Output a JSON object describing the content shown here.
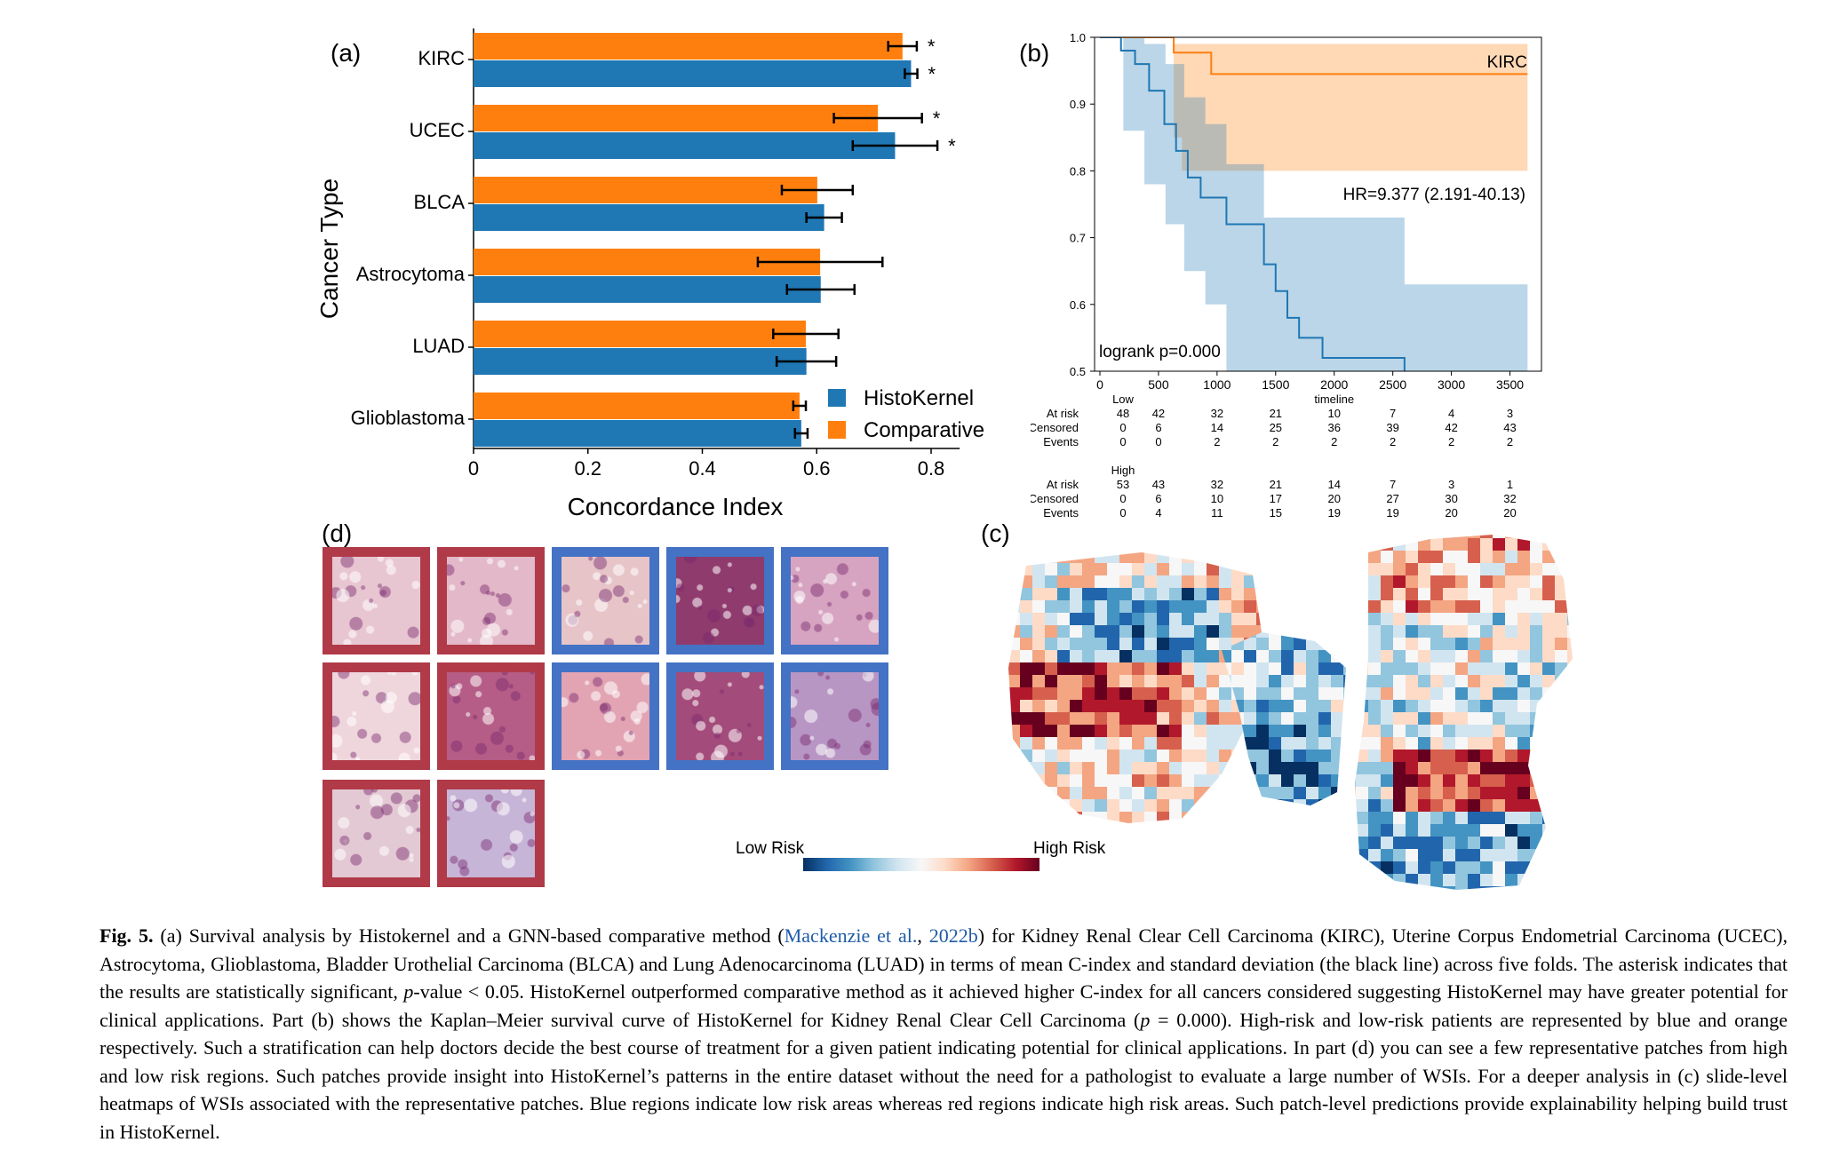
{
  "panels": {
    "a": "(a)",
    "b": "(b)",
    "c": "(c)",
    "d": "(d)"
  },
  "chart_data": [
    {
      "type": "bar",
      "orientation": "horizontal",
      "categories": [
        "KIRC",
        "UCEC",
        "BLCA",
        "Astrocytoma",
        "LUAD",
        "Glioblastoma"
      ],
      "series": [
        {
          "name": "HistoKernel",
          "color": "#1f77b4",
          "values": [
            0.765,
            0.737,
            0.613,
            0.607,
            0.582,
            0.573
          ],
          "err": [
            0.011,
            0.074,
            0.031,
            0.059,
            0.052,
            0.011
          ]
        },
        {
          "name": "Comparative",
          "color": "#ff7f0e",
          "values": [
            0.75,
            0.707,
            0.601,
            0.606,
            0.581,
            0.57
          ],
          "err": [
            0.025,
            0.077,
            0.062,
            0.109,
            0.057,
            0.011
          ]
        }
      ],
      "significant": {
        "HistoKernel": [
          true,
          true,
          false,
          false,
          false,
          false
        ],
        "Comparative": [
          true,
          true,
          false,
          false,
          false,
          false
        ]
      },
      "asterisk": "*",
      "xlabel": "Concordance Index",
      "ylabel": "Cancer Type",
      "xticks": [
        "0",
        "0.2",
        "0.4",
        "0.6",
        "0.8"
      ],
      "xlim": [
        0,
        0.85
      ],
      "legend_position": "lower-right"
    },
    {
      "type": "line",
      "title": "KIRC",
      "xlabel": "timeline",
      "xticks": [
        "0",
        "500",
        "1000",
        "1500",
        "2000",
        "2500",
        "3000",
        "3500"
      ],
      "yticks": [
        "0.5",
        "0.6",
        "0.7",
        "0.8",
        "0.9",
        "1.0"
      ],
      "xlim": [
        0,
        3700
      ],
      "ylim": [
        0.5,
        1.0
      ],
      "annotation_hr": "HR=9.377 (2.191-40.13)",
      "annotation_logrank": "logrank p=0.000",
      "series": [
        {
          "name": "Low",
          "color": "#ff7f0e",
          "x": [
            0,
            630,
            630,
            950,
            950,
            3650
          ],
          "y": [
            1.0,
            1.0,
            0.977,
            0.977,
            0.945,
            0.945
          ],
          "ci_x": [
            0,
            630,
            630,
            700,
            700,
            1400,
            1400,
            3650
          ],
          "ci_upper": [
            1.0,
            1.0,
            0.99,
            0.99,
            0.99,
            0.99,
            0.99,
            0.99
          ],
          "ci_lower": [
            1.0,
            1.0,
            0.85,
            0.85,
            0.8,
            0.8,
            0.8,
            0.8
          ]
        },
        {
          "name": "High",
          "color": "#1f77b4",
          "x": [
            0,
            180,
            180,
            300,
            300,
            420,
            420,
            550,
            550,
            650,
            650,
            750,
            750,
            860,
            860,
            1080,
            1080,
            1400,
            1400,
            1500,
            1500,
            1600,
            1600,
            1700,
            1700,
            1900,
            1900,
            2600,
            2600
          ],
          "y": [
            1.0,
            1.0,
            0.98,
            0.98,
            0.96,
            0.96,
            0.92,
            0.92,
            0.87,
            0.87,
            0.83,
            0.83,
            0.79,
            0.79,
            0.76,
            0.76,
            0.72,
            0.72,
            0.66,
            0.66,
            0.62,
            0.62,
            0.58,
            0.58,
            0.55,
            0.55,
            0.52,
            0.52,
            0.5
          ],
          "ci_x": [
            0,
            200,
            200,
            380,
            380,
            560,
            560,
            720,
            720,
            900,
            900,
            1080,
            1080,
            1400,
            1400,
            2600,
            2600,
            3650
          ],
          "ci_upper": [
            1.0,
            1.0,
            1.0,
            1.0,
            0.99,
            0.99,
            0.96,
            0.96,
            0.91,
            0.91,
            0.87,
            0.87,
            0.81,
            0.81,
            0.73,
            0.73,
            0.63,
            0.63
          ],
          "ci_lower": [
            1.0,
            1.0,
            0.86,
            0.86,
            0.78,
            0.78,
            0.72,
            0.72,
            0.65,
            0.65,
            0.6,
            0.6,
            0.5,
            0.5,
            0.5,
            0.5,
            0.5,
            0.5
          ]
        }
      ],
      "risk_table": {
        "Low": {
          "At risk": [
            "48",
            "42",
            "32",
            "21",
            "10",
            "7",
            "4",
            "3"
          ],
          "Censored": [
            "0",
            "6",
            "14",
            "25",
            "36",
            "39",
            "42",
            "43"
          ],
          "Events": [
            "0",
            "0",
            "2",
            "2",
            "2",
            "2",
            "2",
            "2"
          ]
        },
        "High": {
          "At risk": [
            "53",
            "43",
            "32",
            "21",
            "14",
            "7",
            "3",
            "1"
          ],
          "Censored": [
            "0",
            "6",
            "10",
            "17",
            "20",
            "27",
            "30",
            "32"
          ],
          "Events": [
            "0",
            "4",
            "11",
            "15",
            "19",
            "19",
            "20",
            "20"
          ]
        },
        "row_labels": [
          "At risk",
          "Censored",
          "Events"
        ]
      }
    }
  ],
  "heatmap": {
    "low_label": "Low Risk",
    "high_label": "High Risk",
    "gradient": [
      "#053061",
      "#2166ac",
      "#4393c3",
      "#92c5de",
      "#d1e5f0",
      "#f7f7f7",
      "#fddbc7",
      "#f4a582",
      "#d6604d",
      "#b2182b",
      "#67001f"
    ]
  },
  "patches": {
    "high_border": "#b03a48",
    "low_border": "#4472c4"
  },
  "caption": {
    "fig": "Fig. 5.",
    "part1": " (a) Survival analysis by Histokernel and a GNN-based comparative method (",
    "ref_a": "Mackenzie et al.",
    "sep": ", ",
    "ref_b": "2022b",
    "part2": ") for Kidney Renal Clear Cell Carcinoma (KIRC), Uterine Corpus Endometrial Carcinoma (UCEC), Astrocytoma, Glioblastoma, Bladder Urothelial Carcinoma (BLCA) and Lung Adenocarcinoma (LUAD) in terms of mean C-index and standard deviation (the black line) across five folds. The asterisk indicates that the results are statistically significant, ",
    "p": "p",
    "part3": "-value < 0.05. HistoKernel outperformed comparative method as it achieved higher C-index for all cancers considered suggesting HistoKernel may have greater potential for clinical applications. Part (b) shows the Kaplan–Meier survival curve of HistoKernel for Kidney Renal Clear Cell Carcinoma (",
    "p2": "p",
    "part4": " = 0.000). High-risk and low-risk patients are represented by blue and orange respectively. Such a stratification can help doctors decide the best course of treatment for a given patient indicating potential for clinical applications. In part (d) you can see a few representative patches from high and low risk regions. Such patches provide insight into HistoKernel’s patterns in the entire dataset without the need for a pathologist to evaluate a large number of WSIs. For a deeper analysis in (c) slide-level heatmaps of WSIs associated with the representative patches. Blue regions indicate low risk areas whereas red regions indicate high risk areas. Such patch-level predictions provide explainability helping build trust in HistoKernel."
  }
}
